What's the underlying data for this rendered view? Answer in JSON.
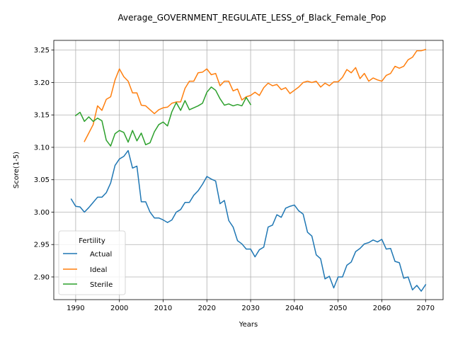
{
  "chart_data": {
    "type": "line",
    "title": "Average_GOVERNMENT_REGULATE_LESS_of_Black_Female_Pop",
    "xlabel": "Years",
    "ylabel": "Score(1-5)",
    "xlim": [
      1985,
      2074
    ],
    "ylim": [
      2.865,
      3.265
    ],
    "xticks": [
      1990,
      2000,
      2010,
      2020,
      2030,
      2040,
      2050,
      2060,
      2070
    ],
    "yticks": [
      2.9,
      2.95,
      3.0,
      3.05,
      3.1,
      3.15,
      3.2,
      3.25
    ],
    "xtick_labels": [
      "1990",
      "2000",
      "2010",
      "2020",
      "2030",
      "2040",
      "2050",
      "2060",
      "2070"
    ],
    "ytick_labels": [
      "2.90",
      "2.95",
      "3.00",
      "3.05",
      "3.10",
      "3.15",
      "3.20",
      "3.25"
    ],
    "grid": true,
    "legend": {
      "title": "Fertility",
      "position": "lower-left"
    },
    "series": [
      {
        "name": "Actual",
        "color": "#1f77b4",
        "x": [
          1989,
          1990,
          1991,
          1992,
          1993,
          1994,
          1995,
          1996,
          1997,
          1998,
          1999,
          2000,
          2001,
          2002,
          2003,
          2004,
          2005,
          2006,
          2007,
          2008,
          2009,
          2010,
          2011,
          2012,
          2013,
          2014,
          2015,
          2016,
          2017,
          2018,
          2019,
          2020,
          2021,
          2022,
          2023,
          2024,
          2025,
          2026,
          2027,
          2028,
          2029,
          2030,
          2031,
          2032,
          2033,
          2034,
          2035,
          2036,
          2037,
          2038,
          2039,
          2040,
          2041,
          2042,
          2043,
          2044,
          2045,
          2046,
          2047,
          2048,
          2049,
          2050,
          2051,
          2052,
          2053,
          2054,
          2055,
          2056,
          2057,
          2058,
          2059,
          2060,
          2061,
          2062,
          2063,
          2064,
          2065,
          2066,
          2067,
          2068,
          2069,
          2070
        ],
        "y": [
          3.02,
          3.009,
          3.008,
          3.0,
          3.007,
          3.015,
          3.023,
          3.023,
          3.03,
          3.045,
          3.072,
          3.082,
          3.086,
          3.095,
          3.068,
          3.071,
          3.016,
          3.016,
          3.0,
          2.991,
          2.991,
          2.988,
          2.984,
          2.988,
          3.0,
          3.004,
          3.015,
          3.015,
          3.026,
          3.033,
          3.043,
          3.055,
          3.051,
          3.048,
          3.013,
          3.018,
          2.987,
          2.977,
          2.956,
          2.951,
          2.943,
          2.943,
          2.931,
          2.942,
          2.946,
          2.977,
          2.98,
          2.996,
          2.992,
          3.006,
          3.009,
          3.011,
          3.002,
          2.997,
          2.969,
          2.963,
          2.934,
          2.928,
          2.897,
          2.901,
          2.883,
          2.9,
          2.9,
          2.918,
          2.923,
          2.939,
          2.944,
          2.951,
          2.953,
          2.957,
          2.954,
          2.958,
          2.943,
          2.944,
          2.924,
          2.922,
          2.898,
          2.9,
          2.88,
          2.887,
          2.878,
          2.888
        ]
      },
      {
        "name": "Ideal",
        "color": "#ff7f0e",
        "x": [
          1992,
          1993,
          1994,
          1995,
          1996,
          1997,
          1998,
          1999,
          2000,
          2001,
          2002,
          2003,
          2004,
          2005,
          2006,
          2007,
          2008,
          2009,
          2010,
          2011,
          2012,
          2013,
          2014,
          2015,
          2016,
          2017,
          2018,
          2019,
          2020,
          2021,
          2022,
          2023,
          2024,
          2025,
          2026,
          2027,
          2028,
          2029,
          2030,
          2031,
          2032,
          2033,
          2034,
          2035,
          2036,
          2037,
          2038,
          2039,
          2040,
          2041,
          2042,
          2043,
          2044,
          2045,
          2046,
          2047,
          2048,
          2049,
          2050,
          2051,
          2052,
          2053,
          2054,
          2055,
          2056,
          2057,
          2058,
          2059,
          2060,
          2061,
          2062,
          2063,
          2064,
          2065,
          2066,
          2067,
          2068,
          2069,
          2070
        ],
        "y": [
          3.109,
          3.122,
          3.135,
          3.164,
          3.157,
          3.174,
          3.178,
          3.204,
          3.221,
          3.209,
          3.202,
          3.184,
          3.184,
          3.165,
          3.164,
          3.158,
          3.152,
          3.158,
          3.161,
          3.162,
          3.168,
          3.17,
          3.17,
          3.191,
          3.202,
          3.202,
          3.215,
          3.216,
          3.221,
          3.212,
          3.214,
          3.195,
          3.202,
          3.202,
          3.187,
          3.19,
          3.173,
          3.178,
          3.18,
          3.185,
          3.18,
          3.192,
          3.199,
          3.195,
          3.197,
          3.189,
          3.192,
          3.183,
          3.188,
          3.193,
          3.2,
          3.202,
          3.2,
          3.202,
          3.193,
          3.199,
          3.195,
          3.201,
          3.201,
          3.208,
          3.22,
          3.215,
          3.223,
          3.206,
          3.214,
          3.202,
          3.207,
          3.204,
          3.202,
          3.211,
          3.214,
          3.225,
          3.222,
          3.225,
          3.235,
          3.239,
          3.249,
          3.249,
          3.251
        ]
      },
      {
        "name": "Sterile",
        "color": "#2ca02c",
        "x": [
          1990,
          1991,
          1992,
          1993,
          1994,
          1995,
          1996,
          1997,
          1998,
          1999,
          2000,
          2001,
          2002,
          2003,
          2004,
          2005,
          2006,
          2007,
          2008,
          2009,
          2010,
          2011,
          2012,
          2013,
          2014,
          2015,
          2016,
          2017,
          2018,
          2019,
          2020,
          2021,
          2022,
          2023,
          2024,
          2025,
          2026,
          2027,
          2028,
          2029,
          2030
        ],
        "y": [
          3.149,
          3.154,
          3.14,
          3.147,
          3.14,
          3.145,
          3.141,
          3.111,
          3.102,
          3.121,
          3.126,
          3.123,
          3.108,
          3.126,
          3.11,
          3.122,
          3.104,
          3.107,
          3.124,
          3.135,
          3.139,
          3.133,
          3.155,
          3.169,
          3.157,
          3.172,
          3.158,
          3.161,
          3.164,
          3.168,
          3.185,
          3.193,
          3.188,
          3.175,
          3.165,
          3.167,
          3.164,
          3.166,
          3.164,
          3.177,
          3.166
        ]
      }
    ]
  }
}
